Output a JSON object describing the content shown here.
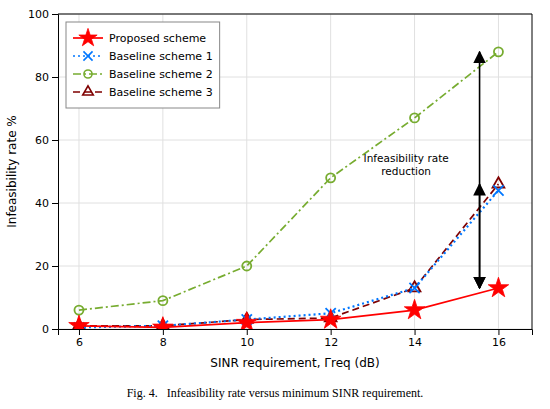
{
  "chart_data": {
    "type": "line",
    "x": [
      6,
      8,
      10,
      12,
      14,
      16
    ],
    "series": [
      {
        "name": "Proposed scheme",
        "color": "#ff0000",
        "marker": "star",
        "line_style": "solid",
        "values": [
          1,
          0.5,
          2,
          3,
          6,
          13
        ]
      },
      {
        "name": "Baseline scheme 1",
        "color": "#0077ff",
        "marker": "x",
        "line_style": "dotted",
        "values": [
          0.5,
          1,
          3,
          5,
          13,
          44
        ]
      },
      {
        "name": "Baseline scheme 2",
        "color": "#77ac30",
        "marker": "circle",
        "line_style": "dashdot",
        "values": [
          6,
          9,
          20,
          48,
          67,
          88
        ]
      },
      {
        "name": "Baseline scheme 3",
        "color": "#7f0000",
        "marker": "triangle",
        "line_style": "dashed",
        "values": [
          1,
          1,
          3,
          3.5,
          13,
          46
        ]
      }
    ],
    "xlabel": "SINR requirement, Γreq (dB)",
    "ylabel": "Infeasibility rate %",
    "xlim": [
      5.5,
      16.8
    ],
    "ylim": [
      0,
      100
    ],
    "xticks": [
      6,
      8,
      10,
      12,
      14,
      16
    ],
    "yticks": [
      0,
      20,
      40,
      60,
      80,
      100
    ],
    "grid": true,
    "legend": "upper left",
    "annotations": [
      {
        "text": "Infeasibility rate\nreduction",
        "x": 13.8,
        "y": 52
      }
    ],
    "arrows": [
      {
        "x": 15.55,
        "y1": 88,
        "y2": 13
      },
      {
        "x": 15.55,
        "y1": 46,
        "y2": 13
      }
    ],
    "caption": "Fig. 4.   Infeasibility rate versus minimum SINR requirement."
  }
}
